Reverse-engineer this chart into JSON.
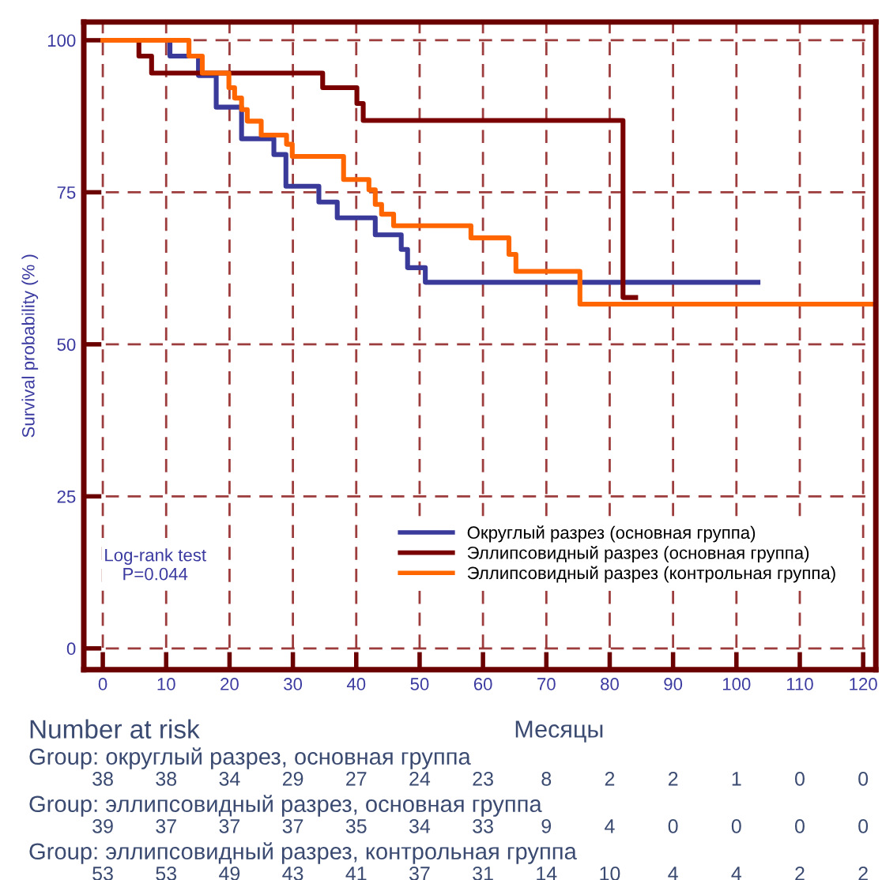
{
  "chart_data": {
    "type": "step",
    "ylabel": "Survival probability (% )",
    "xlabel": "Месяцы",
    "xlim": [
      -3,
      122
    ],
    "ylim": [
      -3.5,
      103
    ],
    "xticks": [
      0,
      10,
      20,
      30,
      40,
      50,
      60,
      70,
      80,
      90,
      100,
      110,
      120
    ],
    "yticks": [
      0,
      25,
      50,
      75,
      100
    ],
    "grid": true,
    "legend": "bottom right",
    "line_style": "solid",
    "series": [
      {
        "name": "Округлый разрез (основная группа)",
        "color": "#3a3a9a",
        "x": [
          0,
          10.6,
          15.1,
          17.9,
          21.9,
          27.0,
          28.9,
          34.1,
          37.0,
          43.0,
          47.1,
          48.1,
          50.9,
          103.4
        ],
        "values": [
          100,
          97.4,
          94.2,
          89.0,
          83.8,
          81.2,
          76.0,
          73.4,
          70.8,
          68.0,
          65.6,
          62.6,
          60.2,
          60.2
        ]
      },
      {
        "name": "Эллипсовидный разрез (основная группа)",
        "color": "#7a0000",
        "x": [
          0,
          5.7,
          7.7,
          34.7,
          40.1,
          41.1,
          82.1,
          84.1
        ],
        "values": [
          100,
          97.4,
          94.6,
          92.2,
          89.6,
          86.8,
          57.7,
          57.7
        ]
      },
      {
        "name": "Эллипсовидный разрез (контрольная группа)",
        "color": "#ff6600",
        "x": [
          0,
          13.6,
          15.7,
          19.9,
          20.8,
          21.9,
          22.8,
          25.0,
          29.0,
          29.9,
          38.0,
          42.0,
          43.0,
          44.0,
          45.9,
          58.1,
          64.1,
          65.2,
          75.3,
          122
        ],
        "values": [
          100,
          97.4,
          94.6,
          92.2,
          90.5,
          88.6,
          86.7,
          84.4,
          82.9,
          80.9,
          77.1,
          75.4,
          73.0,
          71.4,
          69.5,
          67.5,
          64.8,
          62.0,
          56.6,
          56.6
        ]
      }
    ],
    "annotations": [
      "Log-rank test\nP=0.044",
      "Number at risk",
      "Group: округлый разрез, основная группа",
      "38",
      "38",
      "34",
      "29",
      "27",
      "24",
      "23",
      "8",
      "2",
      "2",
      "1",
      "0",
      "0",
      "Group: эллипсовидный разрез, основная группа",
      "39",
      "37",
      "37",
      "37",
      "35",
      "34",
      "33",
      "9",
      "4",
      "0",
      "0",
      "0",
      "0",
      "Group: эллипсовидный разрез, контрольная группа",
      "53",
      "53",
      "49",
      "43",
      "41",
      "37",
      "31",
      "14",
      "10",
      "4",
      "4",
      "2",
      "2"
    ]
  }
}
